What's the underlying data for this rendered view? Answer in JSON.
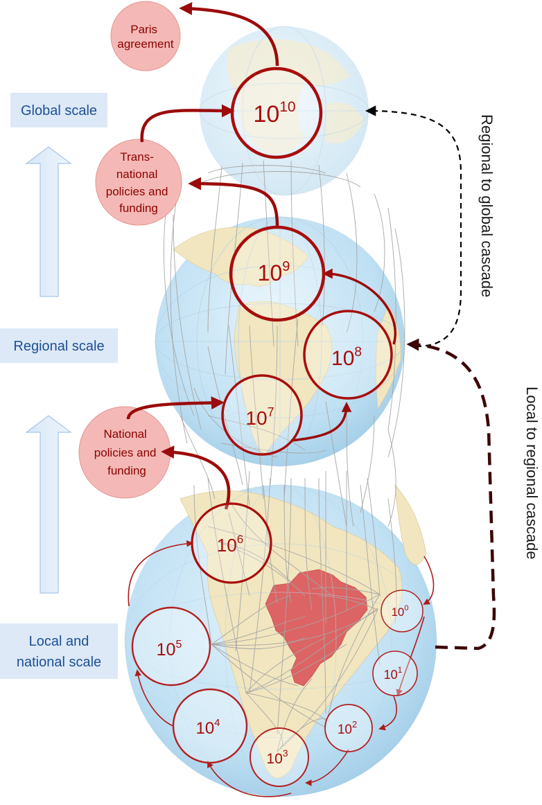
{
  "scale_labels": {
    "global": "Global scale",
    "regional": "Regional scale",
    "local_line1": "Local and",
    "local_line2": "national scale"
  },
  "policy_nodes": {
    "paris": [
      "Paris",
      "agreement"
    ],
    "transnational": [
      "Trans-",
      "national",
      "policies and",
      "funding"
    ],
    "national": [
      "National",
      "policies and",
      "funding"
    ]
  },
  "magnitude_base": "10",
  "magnitudes": [
    "0",
    "1",
    "2",
    "3",
    "4",
    "5",
    "6",
    "7",
    "8",
    "9",
    "10"
  ],
  "cascades": {
    "regional_to_global": "Regional to global cascade",
    "local_to_regional": "Local to regional cascade"
  },
  "highlighted_country": "Brazil",
  "colors": {
    "dark_red": "#a80d0d",
    "arrow_red": "#9b0b0b",
    "pink": "#f4b9b6",
    "ocean": "#bfe0f3",
    "land": "#f1e6bf",
    "brazil": "#dc6464",
    "scale_text": "#1c4f95",
    "scale_box": "#dde9f7",
    "dashed_brown": "#3c0505"
  }
}
